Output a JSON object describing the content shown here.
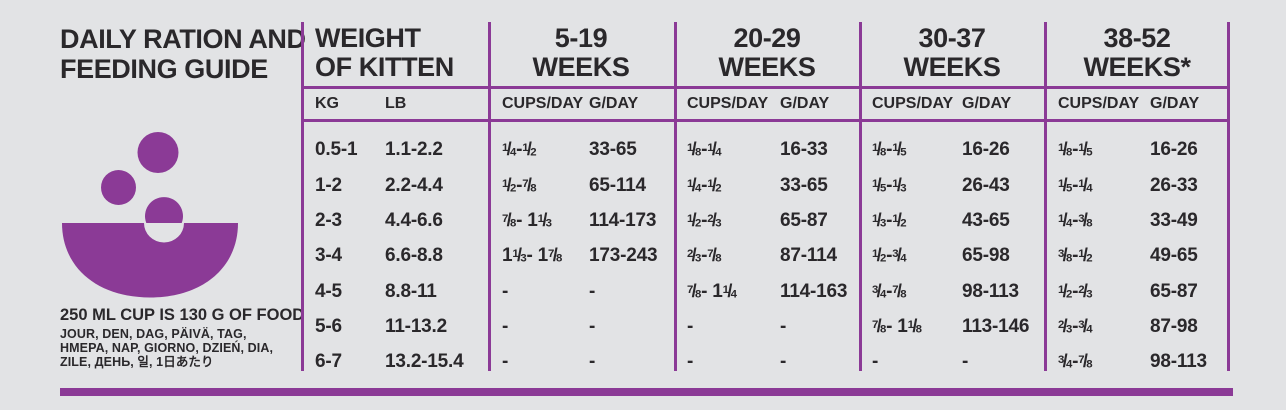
{
  "colors": {
    "purple": "#8b3a96",
    "background": "#e2e3e5",
    "text": "#2a282b"
  },
  "left_panel": {
    "title_line1": "DAILY RATION AND",
    "title_line2": "FEEDING GUIDE",
    "icon": "food-bowl-icon",
    "cup_note": "250 ML CUP IS 130 G OF FOOD",
    "day_translations_line1": "JOUR, DEN, DAG, PÄIVÄ, TAG,",
    "day_translations_line2": "HMEPA, NAP, GIORNO, DZIEŃ, DIA,",
    "day_translations_line3": "ZILE, ДЕНЬ, 일, 1日あたり"
  },
  "table": {
    "weight_header_line1": "WEIGHT",
    "weight_header_line2": "OF KITTEN",
    "weight_subheaders": {
      "kg": "KG",
      "lb": "LB"
    },
    "age_groups": [
      {
        "label_line1": "5-19",
        "label_line2": "WEEKS",
        "cups_header": "CUPS/DAY",
        "g_header": "G/DAY"
      },
      {
        "label_line1": "20-29",
        "label_line2": "WEEKS",
        "cups_header": "CUPS/DAY",
        "g_header": "G/DAY"
      },
      {
        "label_line1": "30-37",
        "label_line2": "WEEKS",
        "cups_header": "CUPS/DAY",
        "g_header": "G/DAY"
      },
      {
        "label_line1": "38-52",
        "label_line2": "WEEKS*",
        "cups_header": "CUPS/DAY",
        "g_header": "G/DAY"
      }
    ],
    "rows": [
      {
        "kg": "0.5-1",
        "lb": "1.1-2.2",
        "cups1": "1/4 - 1/2",
        "g1": "33-65",
        "cups2": "1/8 - 1/4",
        "g2": "16-33",
        "cups3": "1/8 - 1/5",
        "g3": "16-26",
        "cups4": "1/8 - 1/5",
        "g4": "16-26"
      },
      {
        "kg": "1-2",
        "lb": "2.2-4.4",
        "cups1": "1/2 - 7/8",
        "g1": "65-114",
        "cups2": "1/4 - 1/2",
        "g2": "33-65",
        "cups3": "1/5 - 1/3",
        "g3": "26-43",
        "cups4": "1/5 - 1/4",
        "g4": "26-33"
      },
      {
        "kg": "2-3",
        "lb": "4.4-6.6",
        "cups1": "7/8 - 1 1/3",
        "g1": "114-173",
        "cups2": "1/2 - 2/3",
        "g2": "65-87",
        "cups3": "1/3 - 1/2",
        "g3": "43-65",
        "cups4": "1/4 - 3/8",
        "g4": "33-49"
      },
      {
        "kg": "3-4",
        "lb": "6.6-8.8",
        "cups1": "1 1/3 - 1 7/8",
        "g1": "173-243",
        "cups2": "2/3 - 7/8",
        "g2": "87-114",
        "cups3": "1/2 - 3/4",
        "g3": "65-98",
        "cups4": "3/8 - 1/2",
        "g4": "49-65"
      },
      {
        "kg": "4-5",
        "lb": "8.8-11",
        "cups1": "-",
        "g1": "-",
        "cups2": "7/8 - 1 1/4",
        "g2": "114-163",
        "cups3": "3/4 - 7/8",
        "g3": "98-113",
        "cups4": "1/2 - 2/3",
        "g4": "65-87"
      },
      {
        "kg": "5-6",
        "lb": "11-13.2",
        "cups1": "-",
        "g1": "-",
        "cups2": "-",
        "g2": "-",
        "cups3": "7/8 - 1 1/8",
        "g3": "113-146",
        "cups4": "2/3 - 3/4",
        "g4": "87-98"
      },
      {
        "kg": "6-7",
        "lb": "13.2-15.4",
        "cups1": "-",
        "g1": "-",
        "cups2": "-",
        "g2": "-",
        "cups3": "-",
        "g3": "-",
        "cups4": "3/4 - 7/8",
        "g4": "98-113"
      }
    ]
  }
}
